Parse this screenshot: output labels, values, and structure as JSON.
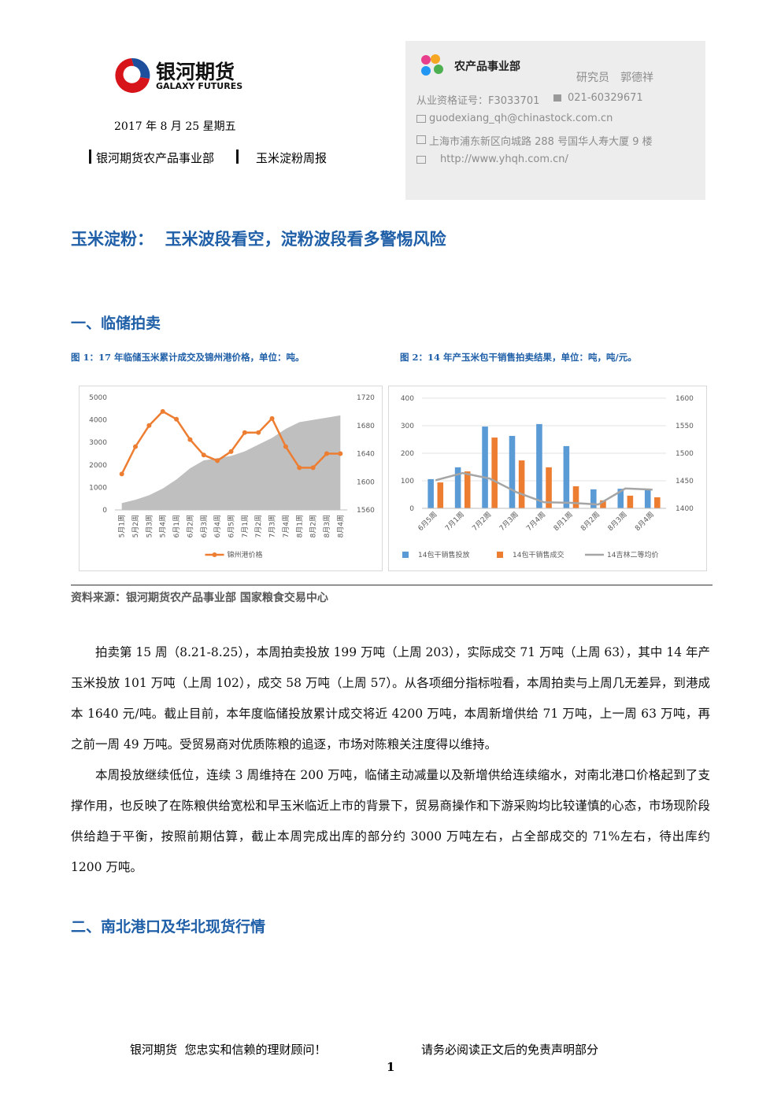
{
  "header": {
    "logo_cn": "银河期货",
    "logo_en": "GALAXY FUTURES",
    "date": "2017 年 8 月 25 星期五",
    "dept": "银河期货农产品事业部",
    "report": "玉米淀粉周报"
  },
  "contact": {
    "unit": "农产品事业部",
    "analyst": "研究员　郭德祥",
    "license": "从业资格证号：F3033701",
    "phone": "021-60329671",
    "email": "guodexiang_qh@chinastock.com.cn",
    "address": "上海市浦东新区向城路 288 号国华人寿大厦 9 楼",
    "web": "http://www.yhqh.com.cn/"
  },
  "title": "玉米淀粉：  玉米波段看空，淀粉波段看多警惕风险",
  "section1": "一、临储拍卖",
  "source": "资料来源：银河期货农产品事业部 国家粮食交易中心",
  "paragraphs": [
    "拍卖第 15 周（8.21-8.25），本周拍卖投放 199 万吨（上周 203），实际成交 71 万吨（上周 63），其中 14 年产玉米投放 101 万吨（上周 102），成交 58 万吨（上周 57）。从各项细分指标啦看，本周拍卖与上周几无差异，到港成本 1640 元/吨。截止目前，本年度临储投放累计成交将近 4200 万吨，本周新增供给 71 万吨，上一周 63 万吨，再之前一周 49 万吨。受贸易商对优质陈粮的追逐，市场对陈粮关注度得以维持。",
    "本周投放继续低位，连续 3 周维持在 200 万吨，临储主动减量以及新增供给连续缩水，对南北港口价格起到了支撑作用，也反映了在陈粮供给宽松和早玉米临近上市的背景下，贸易商操作和下游采购均比较谨慎的心态，市场现阶段供给趋于平衡，按照前期估算，截止本周完成出库的部分约 3000 万吨左右，占全部成交的 71%左右，待出库约 1200 万吨。"
  ],
  "section2": "二、南北港口及华北现货行情",
  "footer": {
    "left": "银河期货  您忠实和信赖的理财顾问！",
    "right": "请务必阅读正文后的免责声明部分",
    "page": "1"
  },
  "chart_data": [
    {
      "type": "combo",
      "title": "图 1：17 年临储玉米累计成交及锦州港价格，单位：吨。",
      "categories": [
        "5月1周",
        "5月2周",
        "5月3周",
        "5月4周",
        "6月1周",
        "6月2周",
        "6月3周",
        "6月4周",
        "6月5周",
        "7月1周",
        "7月2周",
        "7月3周",
        "7月4周",
        "8月1周",
        "8月2周",
        "8月3周",
        "8月4周"
      ],
      "ylim": [
        0,
        5000
      ],
      "yticks": [
        0,
        1000,
        2000,
        3000,
        4000,
        5000
      ],
      "y2lim": [
        1560,
        1720
      ],
      "y2ticks": [
        1560,
        1600,
        1640,
        1680,
        1720
      ],
      "grid": false,
      "series": [
        {
          "type": "area",
          "color": "#bfbfbf",
          "values": [
            300,
            450,
            650,
            950,
            1350,
            1850,
            2200,
            2300,
            2400,
            2600,
            2900,
            3200,
            3600,
            3900,
            4000,
            4100,
            4200
          ]
        },
        {
          "type": "line",
          "name": "锦州港价格",
          "color": "#ed7d31",
          "axis": "y2",
          "markers": true,
          "values": [
            1611,
            1650,
            1680,
            1700,
            1689,
            1660,
            1638,
            1630,
            1643,
            1670,
            1670,
            1690,
            1650,
            1620,
            1620,
            1640,
            1640
          ]
        }
      ]
    },
    {
      "type": "combo",
      "title": "图 2：14 年产玉米包干销售拍卖结果，单位：吨，吨/元。",
      "categories": [
        "6月5周",
        "7月1周",
        "7月2周",
        "7月3周",
        "7月4周",
        "8月1周",
        "8月2周",
        "8月3周",
        "8月4周"
      ],
      "ylim": [
        0,
        400
      ],
      "yticks": [
        0,
        100,
        200,
        300,
        400
      ],
      "y2lim": [
        1400,
        1600
      ],
      "y2ticks": [
        1400,
        1450,
        1500,
        1550,
        1600
      ],
      "grid": true,
      "series": [
        {
          "type": "bar",
          "name": "14包干销售投放",
          "color": "#5b9bd5",
          "values": [
            106,
            149,
            297,
            263,
            306,
            226,
            69,
            71,
            71
          ]
        },
        {
          "type": "bar",
          "name": "14包干销售成交",
          "color": "#ed7d31",
          "values": [
            94,
            134,
            257,
            174,
            149,
            80,
            29,
            46,
            40
          ]
        },
        {
          "type": "line",
          "name": "14吉林二等均价",
          "color": "#a5a5a5",
          "axis": "y2",
          "markers": false,
          "values": [
            1451,
            1464,
            1454,
            1429,
            1411,
            1410,
            1407,
            1436,
            1434
          ]
        }
      ]
    }
  ]
}
